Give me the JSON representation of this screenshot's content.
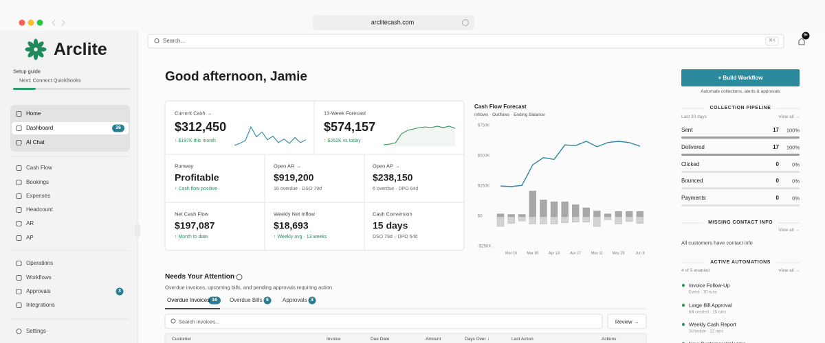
{
  "browser": {
    "url": "arclitecash.com"
  },
  "sidebar": {
    "brand": "Arclite",
    "setup_title": "Setup guide",
    "setup_next": "Next: Connect QuickBooks",
    "primary_nav": [
      {
        "label": "Home"
      },
      {
        "label": "Dashboard",
        "badge": 36
      },
      {
        "label": "AI Chat"
      }
    ],
    "finance_nav": [
      {
        "label": "Cash Flow"
      },
      {
        "label": "Bookings"
      },
      {
        "label": "Expenses"
      },
      {
        "label": "Headcount"
      },
      {
        "label": "AR"
      },
      {
        "label": "AP"
      }
    ],
    "ops_nav": [
      {
        "label": "Operations"
      },
      {
        "label": "Workflows"
      },
      {
        "label": "Approvals",
        "badge": 3
      },
      {
        "label": "Integrations"
      }
    ],
    "settings": "Settings"
  },
  "topbar": {
    "search_placeholder": "Search...",
    "shortcut": "⌘K",
    "notifications": "9+"
  },
  "greeting": "Good afternoon, Jamie",
  "kpis": [
    {
      "label": "Current Cash →",
      "value": "$312,450",
      "note": "↑ $197K this month",
      "note_color": "#2f8f5b",
      "sparkline": [
        0,
        3,
        7,
        26,
        12,
        19,
        8,
        13,
        4,
        9,
        3,
        11,
        4,
        8
      ]
    },
    {
      "label": "13-Week Forecast",
      "value": "$574,157",
      "note": "↑ $262K vs today",
      "note_color": "#2f8f5b",
      "sparkline": [
        0,
        1,
        3,
        16,
        21,
        23,
        25,
        26,
        25,
        27,
        25,
        27,
        24
      ]
    },
    {
      "label": "Runway",
      "value": "Profitable",
      "note": "↑ Cash flow positive",
      "note_color": "#2f8f5b"
    },
    {
      "label": "Open AR →",
      "value": "$919,200",
      "note": "16 overdue · DSO 79d",
      "note_color": "#6b6b6b"
    },
    {
      "label": "Open AP →",
      "value": "$238,150",
      "note": "6 overdue · DPO 64d",
      "note_color": "#6b6b6b"
    },
    {
      "label": "Net Cash Flow",
      "value": "$197,087",
      "note": "↑ Month to date",
      "note_color": "#2f8f5b"
    },
    {
      "label": "Weekly Net Inflow",
      "value": "$18,693",
      "note": "↑ Weekly avg · 13 weeks",
      "note_color": "#2f8f5b"
    },
    {
      "label": "Cash Conversion",
      "value": "15 days",
      "note": "DSO 79d – DPO 64d",
      "note_color": "#6b6b6b"
    }
  ],
  "chart_data": {
    "type": "combo",
    "title": "Cash Flow Forecast",
    "subtitle": "Inflows · Outflows · Ending Balance",
    "categories": [
      null,
      "Mar 16",
      null,
      "Mar 30",
      null,
      "Apr 13",
      null,
      "Apr 27",
      null,
      "May 11",
      null,
      "May 25",
      null,
      "Jun 8"
    ],
    "series": [
      {
        "type": "bar",
        "color": "#a8a8a8",
        "values": [
          25000,
          20000,
          20000,
          215000,
          140000,
          125000,
          125000,
          100000,
          75000,
          50000,
          25000,
          45000,
          45000,
          45000
        ]
      },
      {
        "type": "bar",
        "color": "#d3d3d3",
        "values": [
          -80000,
          -55000,
          -35000,
          -60000,
          -60000,
          -60000,
          -50000,
          -45000,
          -45000,
          -80000,
          -25000,
          -60000,
          -40000,
          -55000
        ]
      },
      {
        "type": "line",
        "color": "#2b87a3",
        "values": [
          255000,
          250000,
          260000,
          430000,
          490000,
          475000,
          595000,
          590000,
          625000,
          580000,
          615000,
          625000,
          615000,
          585000
        ]
      }
    ],
    "ylim": [
      -250000,
      750000
    ],
    "yticks": [
      {
        "value": 750000,
        "label": "$750K"
      },
      {
        "value": 500000,
        "label": "$500K"
      },
      {
        "value": 250000,
        "label": "$250K"
      },
      {
        "value": 0,
        "label": "$0"
      },
      {
        "value": -250000,
        "label": "-$250K"
      }
    ]
  },
  "actions": {
    "build_workflow": "+ Build Workflow",
    "caption": "Automate collections, alerts & approvals"
  },
  "pipeline": {
    "title": "COLLECTION PIPELINE",
    "period": "Last 30 days",
    "view_all": "View all →",
    "rows": [
      {
        "label": "Sent",
        "count": 17,
        "share": {
          "value": 100,
          "label": "100%"
        }
      },
      {
        "label": "Delivered",
        "count": 17,
        "share": {
          "value": 100,
          "label": "100%"
        }
      },
      {
        "label": "Clicked",
        "count": 0,
        "share": {
          "value": 0,
          "label": "0%"
        }
      },
      {
        "label": "Bounced",
        "count": 0,
        "share": {
          "value": 0,
          "label": "0%"
        }
      },
      {
        "label": "Payments",
        "count": 0,
        "share": {
          "value": 0,
          "label": "0%"
        }
      }
    ]
  },
  "contact": {
    "title": "MISSING CONTACT INFO",
    "view_all": "View all →",
    "message": "All customers have contact info"
  },
  "automations": {
    "title": "ACTIVE AUTOMATIONS",
    "status": "4 of 5 enabled",
    "view_all": "View all →",
    "items": [
      {
        "name": "Invoice Follow-Up",
        "detail": "Event · 70 runs"
      },
      {
        "name": "Large Bill Approval",
        "detail": "bill created · 15 runs"
      },
      {
        "name": "Weekly Cash Report",
        "detail": "Schedule · 12 runs"
      },
      {
        "name": "New Customer Welcome"
      }
    ]
  },
  "attention": {
    "title": "Needs Your Attention",
    "subtitle": "Overdue invoices, upcoming bills, and pending approvals requiring action.",
    "tabs": [
      {
        "label": "Overdue Invoices",
        "count": 16
      },
      {
        "label": "Overdue Bills",
        "count": 6
      },
      {
        "label": "Approvals",
        "count": 3
      }
    ],
    "search_placeholder": "Search invoices...",
    "review": "Review →",
    "columns": [
      "Customer",
      "Invoice",
      "Due Date",
      "Amount",
      "Days Over ↓",
      "Last Action",
      "Actions"
    ]
  }
}
